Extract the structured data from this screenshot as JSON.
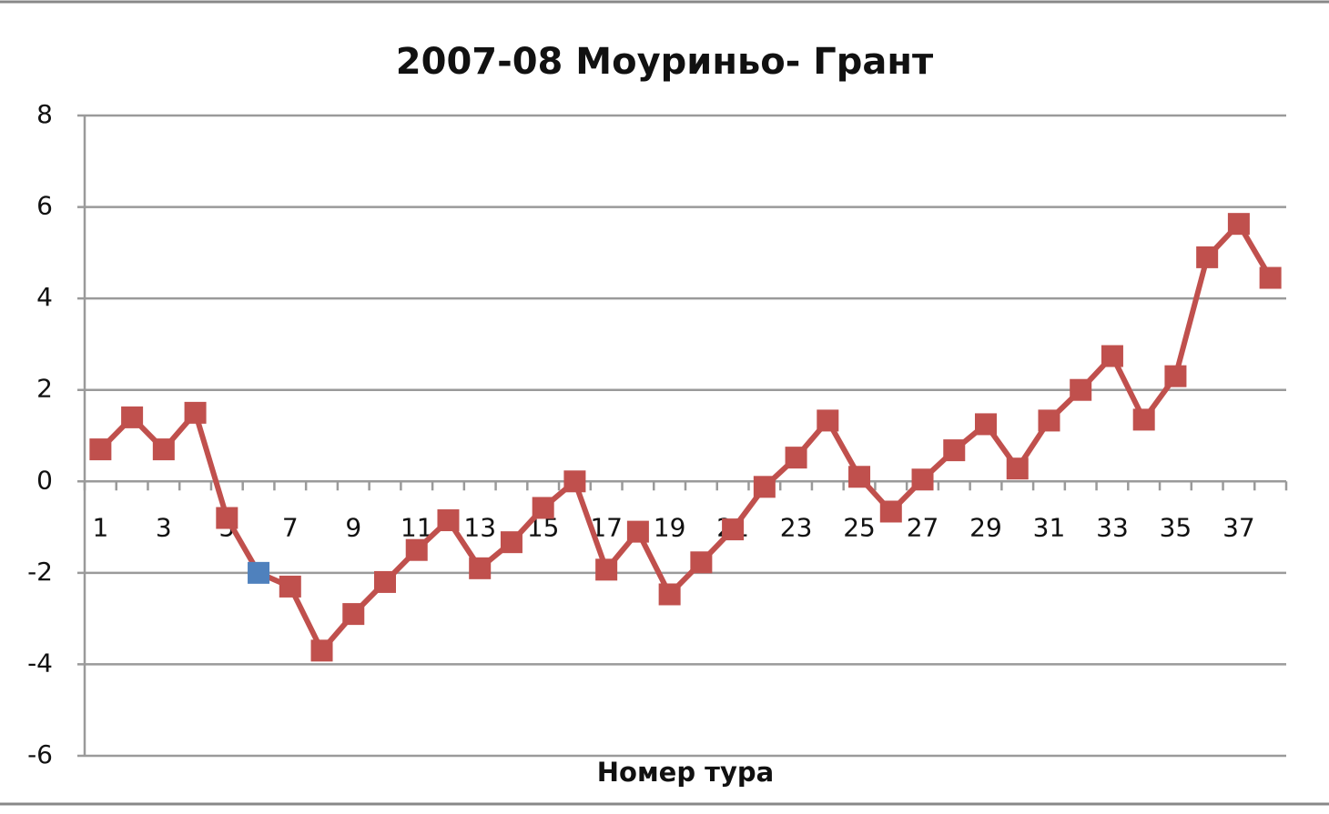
{
  "chart_data": {
    "type": "line",
    "title": "2007-08 Моуриньо- Грант",
    "x_label": "Номер тура",
    "categories": [
      1,
      null,
      3,
      null,
      5,
      null,
      7,
      null,
      9,
      null,
      11,
      null,
      13,
      null,
      15,
      null,
      17,
      null,
      19,
      null,
      21,
      null,
      23,
      null,
      25,
      null,
      27,
      null,
      29,
      null,
      31,
      null,
      33,
      null,
      35,
      null,
      37,
      null
    ],
    "series": [
      {
        "color": "#c0504d",
        "values": [
          0.7,
          1.4,
          0.7,
          1.5,
          -0.8,
          -2,
          -2.3,
          -3.7,
          -2.9,
          -2.2,
          -1.5,
          -0.85,
          -1.9,
          -1.33,
          -0.58,
          0,
          -1.93,
          -1.1,
          -2.47,
          -1.77,
          -1.05,
          -0.12,
          0.52,
          1.33,
          0.1,
          -0.66,
          0.04,
          0.68,
          1.25,
          0.28,
          1.33,
          2,
          2.74,
          1.35,
          2.3,
          4.9,
          5.63,
          4.45
        ]
      }
    ],
    "highlight_points": [
      5
    ],
    "highlight_color": "#4f81bd",
    "ylim": [
      -6,
      8
    ],
    "yticks": [
      -6,
      -4,
      -2,
      0,
      2,
      4,
      6,
      8
    ],
    "grid": true
  }
}
